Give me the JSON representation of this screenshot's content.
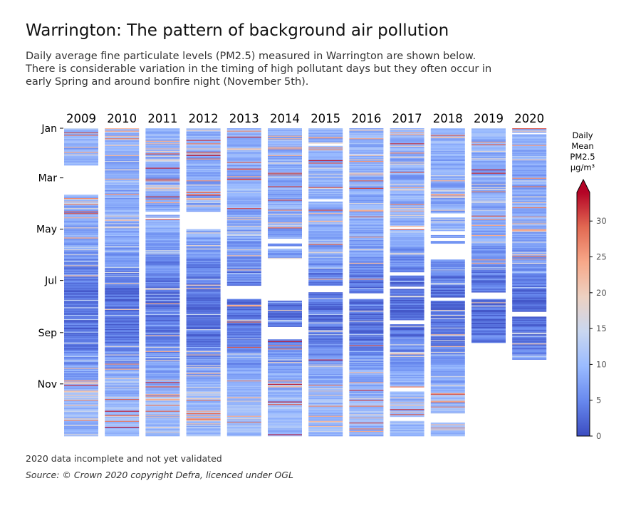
{
  "header": {
    "title": "Warrington: The pattern of background air pollution",
    "subtitle_lines": [
      "Daily average fine particulate levels (PM2.5) measured in Warrington are shown below.",
      "There is considerable variation in the timing of high pollutant days but they often occur in",
      "early Spring and around bonfire night (November 5th)."
    ]
  },
  "footer": {
    "note": "2020 data incomplete and not yet validated",
    "source": "Source: © Crown 2020 copyright Defra,  licenced under OGL"
  },
  "colorbar": {
    "label_lines": [
      "Daily",
      "Mean",
      "PM2.5",
      "µg/m³"
    ],
    "ticks": [
      0,
      5,
      10,
      15,
      20,
      25,
      30
    ],
    "range": [
      0,
      34
    ],
    "extend": "max",
    "colormap": "coolwarm",
    "colors": [
      "#3b4cc0",
      "#6788ee",
      "#9abbff",
      "#c9d7f0",
      "#edd1c2",
      "#f7a889",
      "#e26952",
      "#b40426"
    ]
  },
  "chart_data": {
    "type": "heatmap",
    "x": [
      "2009",
      "2010",
      "2011",
      "2012",
      "2013",
      "2014",
      "2015",
      "2016",
      "2017",
      "2018",
      "2019",
      "2020"
    ],
    "y_tick_labels": [
      "Jan",
      "Mar",
      "May",
      "Jul",
      "Sep",
      "Nov"
    ],
    "y_tick_days": [
      0,
      59,
      120,
      181,
      243,
      304
    ],
    "days_per_year": 366,
    "value": "daily mean PM2.5 (µg/m³)",
    "gaps": {
      "2009": [
        [
          44,
          79
        ]
      ],
      "2011": [
        [
          99,
          103
        ],
        [
          106,
          108
        ]
      ],
      "2012": [
        [
          99,
          120
        ]
      ],
      "2013": [
        [
          187,
          203
        ]
      ],
      "2014": [
        [
          131,
          137
        ],
        [
          140,
          143
        ],
        [
          155,
          205
        ],
        [
          236,
          251
        ]
      ],
      "2015": [
        [
          18,
          21
        ],
        [
          84,
          87
        ],
        [
          187,
          195
        ]
      ],
      "2016": [
        [
          30,
          31
        ],
        [
          196,
          203
        ]
      ],
      "2017": [
        [
          117,
          120
        ],
        [
          171,
          175
        ],
        [
          188,
          191
        ],
        [
          228,
          233
        ],
        [
          308,
          313
        ],
        [
          343,
          348
        ]
      ],
      "2018": [
        [
          101,
          106
        ],
        [
          122,
          127
        ],
        [
          130,
          134
        ],
        [
          137,
          156
        ],
        [
          201,
          205
        ],
        [
          339,
          350
        ]
      ],
      "2019": [
        [
          195,
          203
        ],
        [
          255,
          366
        ]
      ],
      "2020": [
        [
          5,
          7
        ],
        [
          218,
          224
        ],
        [
          275,
          366
        ]
      ]
    },
    "episodes": {
      "2009": [
        [
          5,
          30
        ],
        [
          8,
          28
        ],
        [
          28,
          25
        ],
        [
          90,
          28
        ],
        [
          99,
          32
        ],
        [
          101,
          30
        ],
        [
          175,
          24
        ],
        [
          285,
          22
        ],
        [
          300,
          28
        ],
        [
          305,
          33
        ],
        [
          312,
          22
        ]
      ],
      "2010": [
        [
          3,
          25
        ],
        [
          12,
          28
        ],
        [
          32,
          23
        ],
        [
          60,
          24
        ],
        [
          280,
          26
        ],
        [
          286,
          24
        ],
        [
          322,
          30
        ],
        [
          336,
          33
        ],
        [
          341,
          30
        ],
        [
          348,
          28
        ],
        [
          355,
          34
        ]
      ],
      "2011": [
        [
          15,
          24
        ],
        [
          30,
          30
        ],
        [
          47,
          33
        ],
        [
          60,
          30
        ],
        [
          62,
          28
        ],
        [
          81,
          31
        ],
        [
          84,
          28
        ],
        [
          108,
          30
        ],
        [
          265,
          24
        ],
        [
          302,
          33
        ],
        [
          307,
          30
        ],
        [
          318,
          28
        ]
      ],
      "2012": [
        [
          14,
          32
        ],
        [
          18,
          28
        ],
        [
          28,
          30
        ],
        [
          32,
          33
        ],
        [
          36,
          28
        ],
        [
          76,
          30
        ],
        [
          79,
          33
        ],
        [
          84,
          25
        ],
        [
          269,
          22
        ],
        [
          323,
          28
        ],
        [
          339,
          30
        ],
        [
          345,
          26
        ]
      ],
      "2013": [
        [
          3,
          26
        ],
        [
          10,
          32
        ],
        [
          40,
          30
        ],
        [
          48,
          33
        ],
        [
          60,
          34
        ],
        [
          95,
          31
        ],
        [
          230,
          28
        ],
        [
          260,
          30
        ],
        [
          300,
          26
        ],
        [
          320,
          24
        ],
        [
          342,
          24
        ]
      ],
      "2014": [
        [
          22,
          25
        ],
        [
          53,
          30
        ],
        [
          55,
          28
        ],
        [
          69,
          31
        ],
        [
          85,
          31
        ],
        [
          118,
          30
        ],
        [
          250,
          30
        ],
        [
          253,
          33
        ],
        [
          258,
          28
        ],
        [
          262,
          26
        ],
        [
          304,
          33
        ],
        [
          325,
          33
        ],
        [
          328,
          30
        ],
        [
          364,
          34
        ]
      ],
      "2015": [
        [
          38,
          33
        ],
        [
          41,
          30
        ],
        [
          70,
          30
        ],
        [
          97,
          30
        ],
        [
          110,
          24
        ],
        [
          275,
          33
        ],
        [
          305,
          28
        ],
        [
          330,
          26
        ],
        [
          342,
          24
        ]
      ],
      "2016": [
        [
          12,
          25
        ],
        [
          55,
          24
        ],
        [
          71,
          31
        ],
        [
          129,
          24
        ],
        [
          160,
          23
        ],
        [
          258,
          30
        ],
        [
          290,
          22
        ],
        [
          302,
          24
        ],
        [
          330,
          28
        ],
        [
          350,
          30
        ],
        [
          360,
          24
        ]
      ],
      "2017": [
        [
          5,
          24
        ],
        [
          18,
          32
        ],
        [
          29,
          28
        ],
        [
          52,
          30
        ],
        [
          70,
          24
        ],
        [
          90,
          28
        ],
        [
          116,
          22
        ],
        [
          120,
          30
        ],
        [
          268,
          22
        ]
      ],
      "2018": [
        [
          8,
          30
        ],
        [
          10,
          24
        ],
        [
          62,
          24
        ],
        [
          81,
          22
        ],
        [
          245,
          22
        ],
        [
          316,
          30
        ],
        [
          325,
          28
        ],
        [
          331,
          26
        ],
        [
          356,
          24
        ]
      ],
      "2019": [
        [
          16,
          25
        ],
        [
          19,
          30
        ],
        [
          49,
          33
        ],
        [
          53,
          32
        ],
        [
          104,
          30
        ],
        [
          108,
          26
        ],
        [
          115,
          24
        ],
        [
          160,
          24
        ]
      ],
      "2020": [
        [
          0,
          30
        ],
        [
          20,
          25
        ],
        [
          69,
          28
        ],
        [
          94,
          28
        ],
        [
          105,
          24
        ],
        [
          120,
          24
        ],
        [
          155,
          22
        ]
      ]
    }
  }
}
